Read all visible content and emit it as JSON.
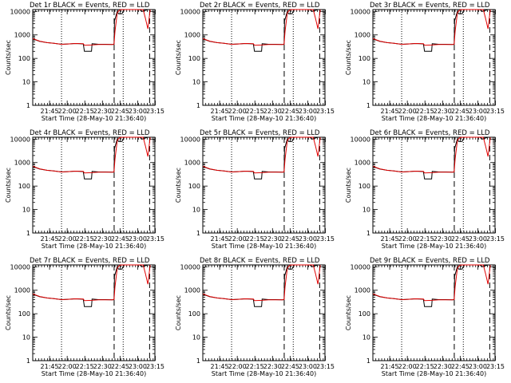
{
  "chart_data": {
    "type": "line",
    "ylabel": "Counts/sec",
    "xlabel": "Start Time (28-May-10 21:36:40)",
    "yscale": "log",
    "ylim": [
      1,
      12000
    ],
    "xlim_min": [
      -6,
      98
    ],
    "y_ticks": [
      1,
      10,
      100,
      1000,
      10000
    ],
    "y_tick_labels": [
      "1",
      "10",
      "100",
      "1000",
      "10000"
    ],
    "x_ticks_min": [
      8.33,
      23.33,
      38.33,
      53.33,
      68.33,
      83.33,
      98.33
    ],
    "x_tick_labels": [
      "21:45",
      "22:00",
      "22:15",
      "22:30",
      "22:45",
      "23:00",
      "23:15"
    ],
    "vertical_markers": [
      {
        "style": "dotted",
        "x_min": 18.5
      },
      {
        "style": "dashed",
        "x_min": 63.3
      },
      {
        "style": "dotted",
        "x_min": 71.0
      },
      {
        "style": "dashed",
        "x_min": 93.5
      }
    ],
    "series": [
      {
        "name": "Events",
        "color": "#000000",
        "x": [
          -6,
          0,
          6,
          12,
          18.5,
          24,
          30,
          34,
          37,
          38,
          44,
          44.5,
          50,
          56,
          62,
          63.2,
          63.6,
          66,
          67,
          70,
          70.8,
          72,
          73,
          79,
          82,
          85,
          87,
          92
        ],
        "y": [
          680,
          530,
          470,
          440,
          400,
          410,
          430,
          420,
          410,
          200,
          200,
          420,
          400,
          400,
          390,
          400,
          4000,
          10200,
          8000,
          8000,
          10000,
          12000,
          12000,
          12000,
          12000,
          12000,
          10000,
          12000
        ]
      },
      {
        "name": "LLD",
        "color": "#e00000",
        "x": [
          -6,
          0,
          6,
          12,
          18.5,
          24,
          30,
          37,
          38,
          44,
          50,
          56,
          62,
          63.2,
          64,
          66,
          68,
          70,
          72,
          74,
          78,
          84,
          88,
          90,
          92,
          94
        ],
        "y": [
          700,
          540,
          470,
          440,
          400,
          410,
          430,
          420,
          360,
          370,
          390,
          390,
          390,
          400,
          1400,
          9000,
          11500,
          12000,
          12000,
          12000,
          12000,
          12000,
          12000,
          5000,
          1800,
          12000
        ]
      }
    ],
    "panels": [
      {
        "title": "Det 1r BLACK = Events, RED = LLD"
      },
      {
        "title": "Det 2r BLACK = Events, RED = LLD"
      },
      {
        "title": "Det 3r BLACK = Events, RED = LLD"
      },
      {
        "title": "Det 4r BLACK = Events, RED = LLD"
      },
      {
        "title": "Det 5r BLACK = Events, RED = LLD"
      },
      {
        "title": "Det 6r BLACK = Events, RED = LLD"
      },
      {
        "title": "Det 7r BLACK = Events, RED = LLD"
      },
      {
        "title": "Det 8r BLACK = Events, RED = LLD"
      },
      {
        "title": "Det 9r BLACK = Events, RED = LLD"
      }
    ]
  }
}
